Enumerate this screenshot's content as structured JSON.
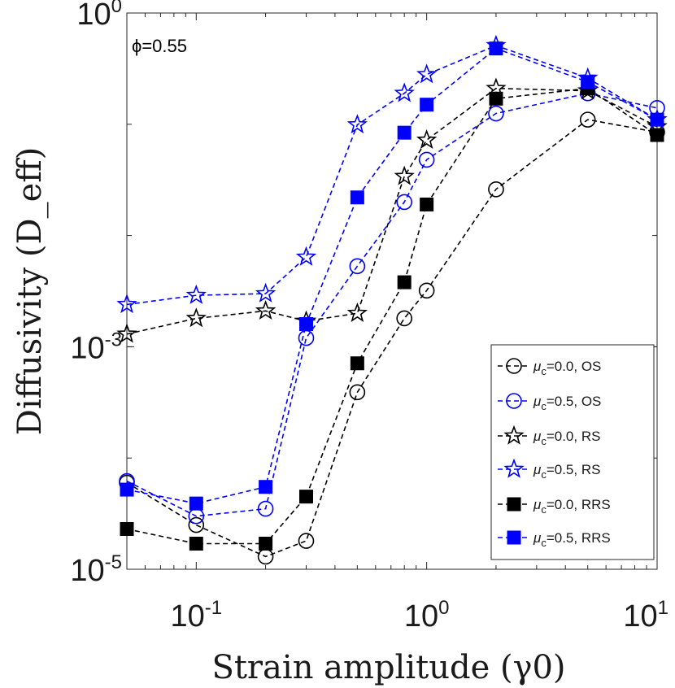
{
  "chart_data": {
    "type": "line",
    "title": "",
    "annotation": "ϕ=0.55",
    "xlabel": "Strain amplitude (γ0)",
    "ylabel": "Diffusivity (D_eff)",
    "xscale": "log",
    "yscale": "log",
    "xlim": [
      0.05,
      10
    ],
    "ylim": [
      1e-05,
      1
    ],
    "x_ticks": [
      {
        "value": 0.1,
        "base": "10",
        "exp": "-1"
      },
      {
        "value": 1,
        "base": "10",
        "exp": "0"
      },
      {
        "value": 10,
        "base": "10",
        "exp": "1"
      }
    ],
    "y_ticks": [
      {
        "value": 1e-05,
        "base": "10",
        "exp": "-5"
      },
      {
        "value": 0.001,
        "base": "10",
        "exp": "-3"
      },
      {
        "value": 1,
        "base": "10",
        "exp": "0"
      }
    ],
    "x": [
      0.05,
      0.1,
      0.2,
      0.3,
      0.5,
      0.8,
      1.0,
      2.0,
      5.0,
      10.0
    ],
    "legend_position": "bottom-right",
    "series": [
      {
        "name": "μc=0.0, OS",
        "mu": "μ",
        "sub": "c",
        "rest": "=0.0, OS",
        "color": "#000000",
        "marker": "circle",
        "values": [
          6e-05,
          2.5e-05,
          1.3e-05,
          1.8e-05,
          0.00039,
          0.0018,
          0.0032,
          0.026,
          0.11,
          0.085
        ]
      },
      {
        "name": "μc=0.5, OS",
        "mu": "μ",
        "sub": "c",
        "rest": "=0.5, OS",
        "color": "#0000ff",
        "marker": "circle",
        "values": [
          6.2e-05,
          3e-05,
          3.5e-05,
          0.0012,
          0.0053,
          0.02,
          0.048,
          0.125,
          0.19,
          0.14
        ]
      },
      {
        "name": "μc=0.0, RS",
        "mu": "μ",
        "sub": "c",
        "rest": "=0.0, RS",
        "color": "#000000",
        "marker": "star",
        "values": [
          0.0013,
          0.0018,
          0.0021,
          0.0017,
          0.002,
          0.034,
          0.072,
          0.21,
          0.2,
          0.095
        ]
      },
      {
        "name": "μc=0.5, RS",
        "mu": "μ",
        "sub": "c",
        "rest": "=0.5, RS",
        "color": "#0000ff",
        "marker": "star",
        "values": [
          0.0024,
          0.0029,
          0.003,
          0.0064,
          0.099,
          0.19,
          0.28,
          0.51,
          0.26,
          0.11
        ]
      },
      {
        "name": "μc=0.0, RRS",
        "mu": "μ",
        "sub": "c",
        "rest": "=0.0, RRS",
        "color": "#000000",
        "marker": "square",
        "values": [
          2.3e-05,
          1.7e-05,
          1.7e-05,
          4.5e-05,
          0.00071,
          0.0038,
          0.019,
          0.17,
          0.21,
          0.08
        ]
      },
      {
        "name": "μc=0.5, RRS",
        "mu": "μ",
        "sub": "c",
        "rest": "=0.5, RRS",
        "color": "#0000ff",
        "marker": "square",
        "values": [
          5.2e-05,
          3.9e-05,
          5.5e-05,
          0.0016,
          0.022,
          0.084,
          0.15,
          0.48,
          0.24,
          0.11
        ]
      }
    ]
  }
}
